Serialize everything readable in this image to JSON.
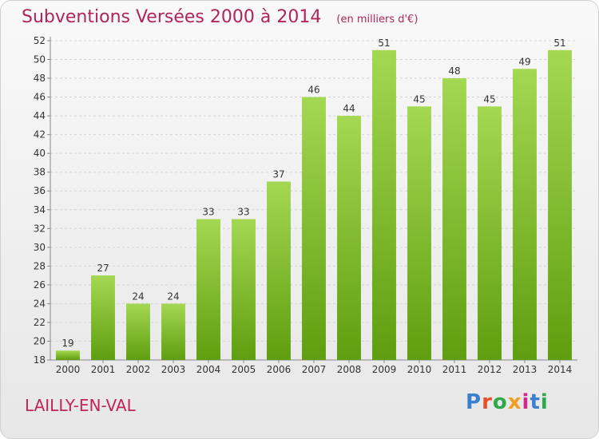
{
  "header": {
    "title": "Subventions Versées 2000 à 2014",
    "subtitle": "(en milliers d'€)"
  },
  "footer": {
    "place": "LAILLY-EN-VAL",
    "logo": "Proxiti"
  },
  "colors": {
    "title": "#b0245c",
    "bar_light": "#a4d852",
    "bar_dark": "#5f9e10",
    "logo_letters": [
      "#3a7fd0",
      "#e8502a",
      "#2da84a",
      "#f0a020",
      "#d02a8a",
      "#3a7fd0",
      "#2da84a"
    ]
  },
  "chart_data": {
    "type": "bar",
    "categories": [
      "2000",
      "2001",
      "2002",
      "2003",
      "2004",
      "2005",
      "2006",
      "2007",
      "2008",
      "2009",
      "2010",
      "2011",
      "2012",
      "2013",
      "2014"
    ],
    "values": [
      19,
      27,
      24,
      24,
      33,
      33,
      37,
      46,
      44,
      51,
      45,
      48,
      45,
      49,
      51
    ],
    "ylim": [
      18,
      52
    ],
    "yticks": [
      18,
      20,
      22,
      24,
      26,
      28,
      30,
      32,
      34,
      36,
      38,
      40,
      42,
      44,
      46,
      48,
      50,
      52
    ],
    "grid": true
  }
}
